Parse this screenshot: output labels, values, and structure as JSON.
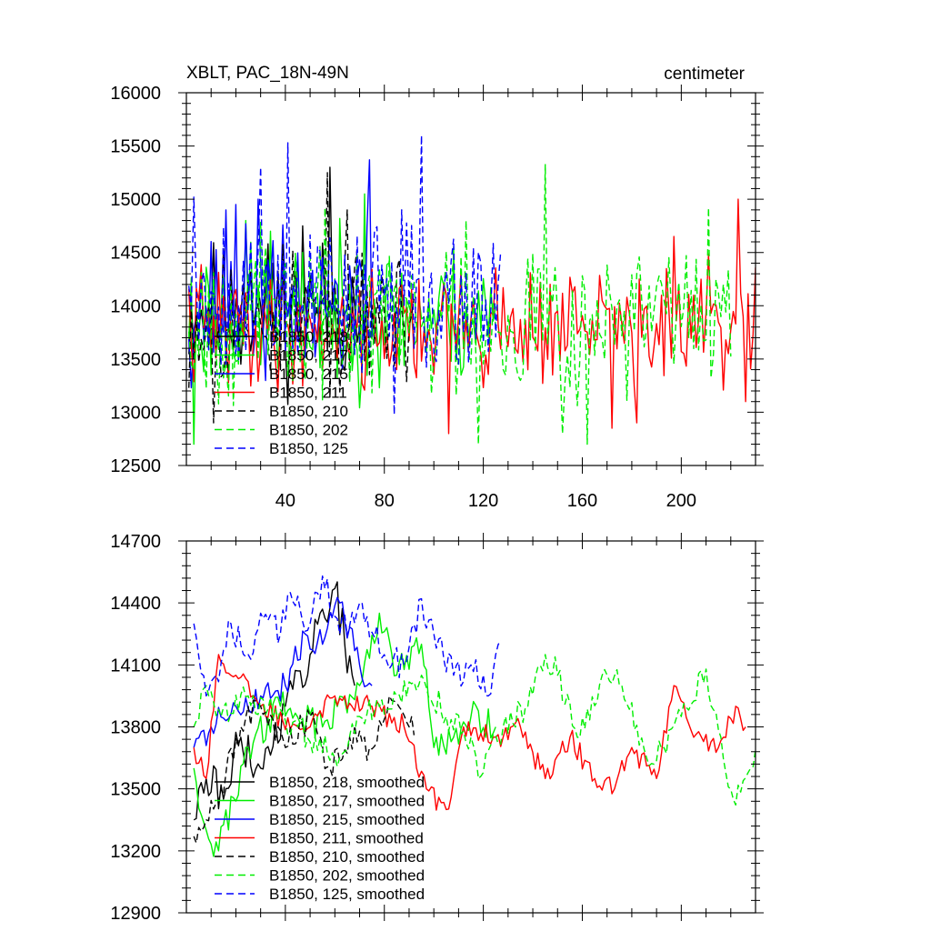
{
  "chart_data": [
    {
      "type": "line",
      "title_left": "XBLT, PAC_18N-49N",
      "title_right": "centimeter",
      "xlim": [
        0,
        230
      ],
      "ylim": [
        12500,
        16000
      ],
      "xticks": [
        40,
        80,
        120,
        160,
        200
      ],
      "xtick_labels": [
        "40",
        "80",
        "120",
        "160",
        "200"
      ],
      "yticks": [
        12500,
        13000,
        13500,
        14000,
        14500,
        15000,
        15500,
        16000
      ],
      "ytick_labels": [
        "12500",
        "13000",
        "13500",
        "14000",
        "14500",
        "15000",
        "15500",
        "16000"
      ],
      "legend": [
        "B1850, 218",
        "B1850, 217",
        "B1850, 215",
        "B1850, 211",
        "B1850, 210",
        "B1850, 202",
        "B1850, 125"
      ],
      "series": [
        {
          "name": "B1850, 218",
          "color": "#000000",
          "dash": false,
          "length": 70,
          "mean": 13950,
          "amp": 320,
          "seed": 11,
          "peaks": [
            [
              58,
              15300
            ],
            [
              47,
              14750
            ],
            [
              35,
              14400
            ]
          ]
        },
        {
          "name": "B1850, 217",
          "color": "#00ee00",
          "dash": false,
          "length": 125,
          "mean": 13900,
          "amp": 330,
          "seed": 23,
          "peaks": [
            [
              72,
              15050
            ],
            [
              24,
              14800
            ],
            [
              34,
              14700
            ],
            [
              3,
              12700
            ]
          ]
        },
        {
          "name": "B1850, 215",
          "color": "#0000ff",
          "dash": false,
          "length": 75,
          "mean": 14000,
          "amp": 340,
          "seed": 37,
          "peaks": [
            [
              74,
              15370
            ],
            [
              29,
              15000
            ],
            [
              20,
              14950
            ],
            [
              16,
              14900
            ]
          ]
        },
        {
          "name": "B1850, 211",
          "color": "#ff0000",
          "dash": false,
          "length": 230,
          "mean": 13800,
          "amp": 280,
          "seed": 41,
          "peaks": [
            [
              223,
              15000
            ],
            [
              197,
              14650
            ],
            [
              106,
              12800
            ],
            [
              172,
              12850
            ],
            [
              182,
              12900
            ],
            [
              226,
              13100
            ]
          ]
        },
        {
          "name": "B1850, 210",
          "color": "#000000",
          "dash": true,
          "length": 92,
          "mean": 13900,
          "amp": 320,
          "seed": 53,
          "peaks": [
            [
              57,
              15250
            ],
            [
              11,
              12900
            ],
            [
              65,
              14900
            ]
          ]
        },
        {
          "name": "B1850, 202",
          "color": "#00ee00",
          "dash": true,
          "length": 220,
          "mean": 13900,
          "amp": 380,
          "seed": 67,
          "peaks": [
            [
              145,
              15330
            ],
            [
              211,
              14920
            ],
            [
              162,
              12700
            ],
            [
              118,
              12700
            ],
            [
              152,
              12800
            ],
            [
              113,
              14800
            ]
          ]
        },
        {
          "name": "B1850, 125",
          "color": "#0000ff",
          "dash": true,
          "length": 127,
          "mean": 14100,
          "amp": 360,
          "seed": 79,
          "peaks": [
            [
              95,
              15600
            ],
            [
              41,
              15530
            ],
            [
              30,
              15300
            ],
            [
              3,
              15020
            ],
            [
              84,
              12980
            ]
          ]
        }
      ]
    },
    {
      "type": "line",
      "xlim": [
        0,
        230
      ],
      "ylim": [
        12900,
        14700
      ],
      "xticks": [
        40,
        80,
        120,
        160,
        200
      ],
      "yticks": [
        12900,
        13200,
        13500,
        13800,
        14100,
        14400,
        14700
      ],
      "ytick_labels": [
        "12900",
        "13200",
        "13500",
        "13800",
        "14100",
        "14400",
        "14700"
      ],
      "legend": [
        "B1850, 218, smoothed",
        "B1850, 217, smoothed",
        "B1850, 215, smoothed",
        "B1850, 211, smoothed",
        "B1850, 210, smoothed",
        "B1850, 202, smoothed",
        "B1850, 125, smoothed"
      ],
      "series": [
        {
          "name": "B1850, 218, smoothed",
          "color": "#000000",
          "dash": false,
          "length": 70,
          "mean": 13800,
          "amp": 110,
          "seed": 111,
          "anchors": [
            [
              3,
              13350
            ],
            [
              8,
              13550
            ],
            [
              15,
              13450
            ],
            [
              22,
              13750
            ],
            [
              30,
              13600
            ],
            [
              40,
              13900
            ],
            [
              50,
              14150
            ],
            [
              54,
              14350
            ],
            [
              60,
              14470
            ],
            [
              64,
              14200
            ],
            [
              68,
              14000
            ]
          ]
        },
        {
          "name": "B1850, 217, smoothed",
          "color": "#00ee00",
          "dash": false,
          "length": 125,
          "mean": 13850,
          "amp": 80,
          "seed": 123,
          "anchors": [
            [
              3,
              13600
            ],
            [
              8,
              13300
            ],
            [
              13,
              13200
            ],
            [
              25,
              13700
            ],
            [
              38,
              13900
            ],
            [
              55,
              13800
            ],
            [
              70,
              14000
            ],
            [
              78,
              14350
            ],
            [
              85,
              14050
            ],
            [
              95,
              14200
            ],
            [
              100,
              13700
            ],
            [
              108,
              13750
            ],
            [
              115,
              13850
            ],
            [
              125,
              13800
            ]
          ]
        },
        {
          "name": "B1850, 215, smoothed",
          "color": "#0000ff",
          "dash": false,
          "length": 75,
          "mean": 13900,
          "amp": 70,
          "seed": 137,
          "anchors": [
            [
              3,
              13700
            ],
            [
              10,
              13800
            ],
            [
              20,
              13900
            ],
            [
              30,
              13950
            ],
            [
              40,
              14000
            ],
            [
              48,
              14250
            ],
            [
              55,
              14200
            ],
            [
              62,
              14400
            ],
            [
              70,
              14100
            ],
            [
              75,
              14000
            ]
          ]
        },
        {
          "name": "B1850, 211, smoothed",
          "color": "#ff0000",
          "dash": false,
          "length": 230,
          "mean": 13750,
          "amp": 55,
          "seed": 141,
          "anchors": [
            [
              3,
              13700
            ],
            [
              8,
              13550
            ],
            [
              13,
              14150
            ],
            [
              20,
              14050
            ],
            [
              30,
              13900
            ],
            [
              45,
              13800
            ],
            [
              60,
              13950
            ],
            [
              75,
              13900
            ],
            [
              88,
              13800
            ],
            [
              97,
              13500
            ],
            [
              105,
              13400
            ],
            [
              112,
              13800
            ],
            [
              125,
              13750
            ],
            [
              135,
              13800
            ],
            [
              145,
              13550
            ],
            [
              155,
              13750
            ],
            [
              165,
              13550
            ],
            [
              173,
              13500
            ],
            [
              180,
              13700
            ],
            [
              190,
              13550
            ],
            [
              197,
              14000
            ],
            [
              205,
              13750
            ],
            [
              215,
              13700
            ],
            [
              222,
              13900
            ],
            [
              226,
              13800
            ]
          ]
        },
        {
          "name": "B1850, 210, smoothed",
          "color": "#000000",
          "dash": true,
          "length": 92,
          "mean": 13750,
          "amp": 70,
          "seed": 153,
          "anchors": [
            [
              3,
              13270
            ],
            [
              8,
              13350
            ],
            [
              14,
              13500
            ],
            [
              22,
              13800
            ],
            [
              30,
              13900
            ],
            [
              40,
              13700
            ],
            [
              50,
              13850
            ],
            [
              58,
              13600
            ],
            [
              66,
              13750
            ],
            [
              74,
              13700
            ],
            [
              82,
              13950
            ],
            [
              90,
              13800
            ],
            [
              92,
              13760
            ]
          ]
        },
        {
          "name": "B1850, 202, smoothed",
          "color": "#00ee00",
          "dash": true,
          "length": 220,
          "mean": 13850,
          "amp": 70,
          "seed": 167,
          "anchors": [
            [
              3,
              13800
            ],
            [
              8,
              14000
            ],
            [
              14,
              13850
            ],
            [
              25,
              13950
            ],
            [
              45,
              13800
            ],
            [
              60,
              13650
            ],
            [
              70,
              13850
            ],
            [
              85,
              13950
            ],
            [
              95,
              14050
            ],
            [
              105,
              13850
            ],
            [
              115,
              13750
            ],
            [
              118,
              13550
            ],
            [
              128,
              13800
            ],
            [
              138,
              13900
            ],
            [
              145,
              14150
            ],
            [
              150,
              14050
            ],
            [
              158,
              13750
            ],
            [
              168,
              14050
            ],
            [
              176,
              14000
            ],
            [
              186,
              13650
            ],
            [
              193,
              13700
            ],
            [
              200,
              13850
            ],
            [
              210,
              14080
            ],
            [
              216,
              13750
            ],
            [
              221,
              13450
            ],
            [
              228,
              13600
            ],
            [
              232,
              13850
            ]
          ]
        },
        {
          "name": "B1850, 125, smoothed",
          "color": "#0000ff",
          "dash": true,
          "length": 127,
          "mean": 14250,
          "amp": 75,
          "seed": 179,
          "anchors": [
            [
              3,
              14300
            ],
            [
              8,
              13950
            ],
            [
              12,
              14050
            ],
            [
              18,
              14300
            ],
            [
              25,
              14150
            ],
            [
              30,
              14350
            ],
            [
              38,
              14250
            ],
            [
              42,
              14450
            ],
            [
              50,
              14300
            ],
            [
              55,
              14530
            ],
            [
              62,
              14250
            ],
            [
              70,
              14400
            ],
            [
              80,
              14150
            ],
            [
              88,
              14100
            ],
            [
              95,
              14420
            ],
            [
              100,
              14250
            ],
            [
              108,
              14050
            ],
            [
              115,
              14100
            ],
            [
              122,
              13950
            ],
            [
              125,
              14150
            ],
            [
              127,
              14220
            ]
          ]
        }
      ]
    }
  ]
}
